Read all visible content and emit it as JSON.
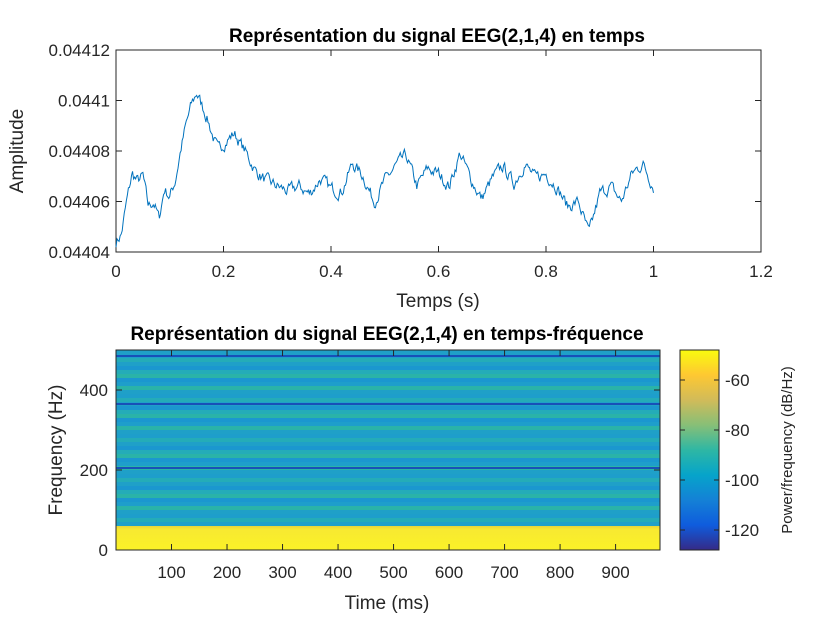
{
  "chart_data": [
    {
      "type": "line",
      "title": "Représentation du signal EEG(2,1,4) en temps",
      "xlabel": "Temps (s)",
      "ylabel": "Amplitude",
      "xlim": [
        0,
        1.2
      ],
      "ylim": [
        0.04404,
        0.04412
      ],
      "x_ticks": [
        "0",
        "0.2",
        "0.4",
        "0.6",
        "0.8",
        "1",
        "1.2"
      ],
      "y_ticks": [
        "0.04404",
        "0.04406",
        "0.04408",
        "0.0441",
        "0.04412"
      ],
      "grid": false,
      "line_color": "#0072BD",
      "series": [
        {
          "x": [
            0,
            0.01,
            0.02,
            0.03,
            0.04,
            0.05,
            0.06,
            0.07,
            0.08,
            0.09,
            0.1,
            0.11,
            0.12,
            0.13,
            0.14,
            0.15,
            0.16,
            0.17,
            0.18,
            0.19,
            0.2,
            0.22,
            0.24,
            0.26,
            0.28,
            0.3,
            0.32,
            0.34,
            0.36,
            0.38,
            0.4,
            0.42,
            0.44,
            0.46,
            0.48,
            0.5,
            0.52,
            0.54,
            0.56,
            0.58,
            0.6,
            0.62,
            0.64,
            0.66,
            0.68,
            0.7,
            0.72,
            0.74,
            0.76,
            0.78,
            0.8,
            0.82,
            0.84,
            0.86,
            0.88,
            0.9,
            0.92,
            0.94,
            0.96,
            0.98,
            1.0
          ],
          "values": [
            0.044044,
            0.044047,
            0.04406,
            0.044071,
            0.044068,
            0.04407,
            0.044058,
            0.04406,
            0.044053,
            0.044065,
            0.044062,
            0.044068,
            0.04408,
            0.04409,
            0.044098,
            0.044103,
            0.044098,
            0.044093,
            0.044086,
            0.04408,
            0.044083,
            0.044087,
            0.04408,
            0.044072,
            0.044068,
            0.044066,
            0.044064,
            0.044066,
            0.044063,
            0.044069,
            0.044065,
            0.044064,
            0.044075,
            0.04407,
            0.04406,
            0.044068,
            0.044074,
            0.044078,
            0.044066,
            0.044073,
            0.044071,
            0.044066,
            0.044079,
            0.044069,
            0.044061,
            0.044069,
            0.044074,
            0.044067,
            0.044075,
            0.044069,
            0.044071,
            0.044066,
            0.044058,
            0.04406,
            0.044047,
            0.044063,
            0.044066,
            0.04406,
            0.044071,
            0.044075,
            0.044066
          ]
        }
      ]
    },
    {
      "type": "heatmap",
      "title": "Représentation du signal EEG(2,1,4) en temps-fréquence",
      "xlabel": "Time (ms)",
      "ylabel": "Frequency (Hz)",
      "xlim": [
        0,
        980
      ],
      "ylim": [
        0,
        500
      ],
      "x_ticks": [
        "100",
        "200",
        "300",
        "400",
        "500",
        "600",
        "700",
        "800",
        "900"
      ],
      "y_ticks": [
        "0",
        "200",
        "400"
      ],
      "colorbar": {
        "label": "Power/frequency (dB/Hz)",
        "ticks": [
          "-60",
          "-80",
          "-100",
          "-120"
        ],
        "range": [
          -128,
          -48
        ],
        "colormap": "parula"
      },
      "frequency_bands": [
        {
          "from": 0,
          "to": 60,
          "db": -52
        },
        {
          "from": 60,
          "to": 500,
          "db": -90,
          "striped": true
        }
      ],
      "dark_lines_hz": [
        205,
        365,
        485
      ]
    }
  ]
}
